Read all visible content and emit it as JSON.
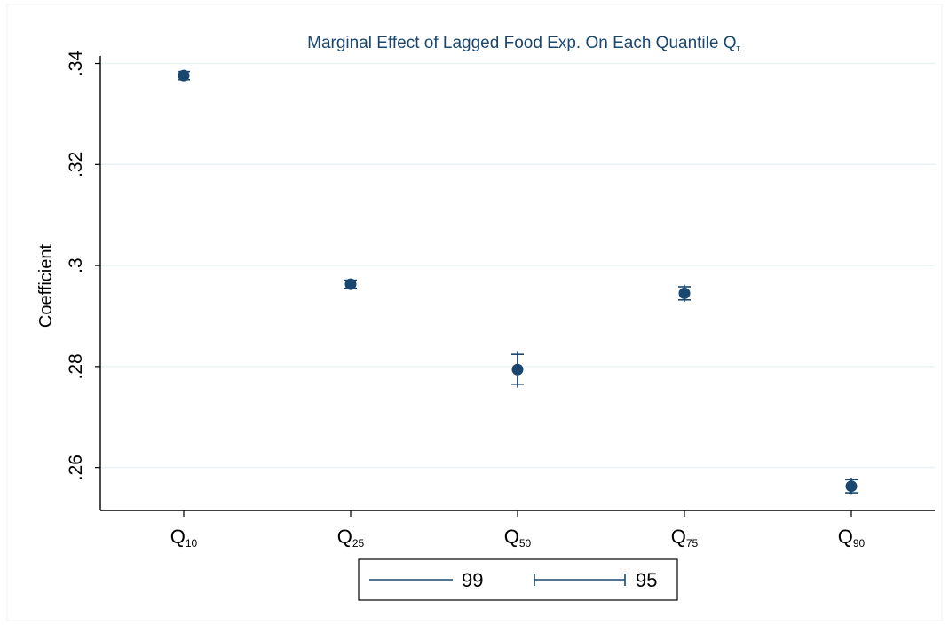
{
  "chart_data": {
    "type": "scatter",
    "title": "Marginal Effect of Lagged Food Exp. On Each Quantile Q",
    "title_subscript": "τ",
    "xlabel": "",
    "ylabel": "Coefficient",
    "ylim": [
      0.2515,
      0.3415
    ],
    "yticks": [
      0.26,
      0.28,
      0.3,
      0.32,
      0.34
    ],
    "ytick_labels": [
      ".26",
      ".28",
      ".3",
      ".32",
      ".34"
    ],
    "grid": true,
    "categories": [
      {
        "base": "Q",
        "sub": "10"
      },
      {
        "base": "Q",
        "sub": "25"
      },
      {
        "base": "Q",
        "sub": "50"
      },
      {
        "base": "Q",
        "sub": "75"
      },
      {
        "base": "Q",
        "sub": "90"
      }
    ],
    "points": [
      {
        "coef": 0.3376,
        "ci99": [
          0.3365,
          0.3387
        ],
        "ci95": [
          0.3368,
          0.3384
        ]
      },
      {
        "coef": 0.2963,
        "ci99": [
          0.2952,
          0.2974
        ],
        "ci95": [
          0.2955,
          0.2971
        ]
      },
      {
        "coef": 0.2794,
        "ci99": [
          0.2758,
          0.2831
        ],
        "ci95": [
          0.2765,
          0.2824
        ]
      },
      {
        "coef": 0.2945,
        "ci99": [
          0.2928,
          0.2962
        ],
        "ci95": [
          0.2932,
          0.2958
        ]
      },
      {
        "coef": 0.2563,
        "ci99": [
          0.2546,
          0.258
        ],
        "ci95": [
          0.255,
          0.2576
        ]
      }
    ],
    "legend": {
      "placement": "bottom",
      "entries": [
        {
          "label": "99",
          "style": "line"
        },
        {
          "label": "95",
          "style": "capped"
        }
      ]
    },
    "colors": {
      "marker": "#1a476f",
      "title": "#1a476f",
      "grid": "#eaf2f3",
      "axis": "#000000"
    }
  }
}
